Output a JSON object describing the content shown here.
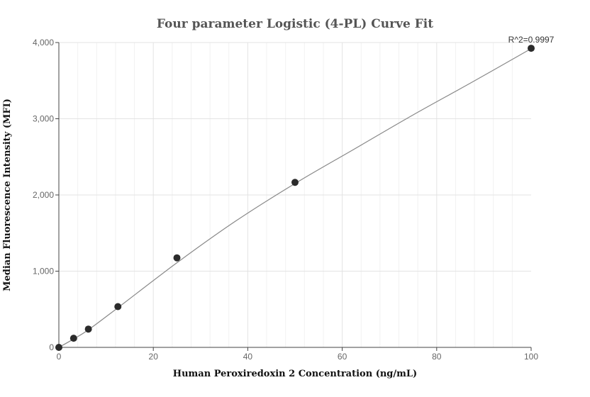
{
  "chart_data": {
    "type": "scatter",
    "title": "Four parameter Logistic (4-PL) Curve Fit",
    "xlabel": "Human Peroxiredoxin 2 Concentration (ng/mL)",
    "ylabel": "Median Fluorescence Intensity (MFI)",
    "xlim": [
      0,
      100
    ],
    "ylim": [
      0,
      4000
    ],
    "x_ticks": [
      0,
      20,
      40,
      60,
      80,
      100
    ],
    "x_tick_labels": [
      "0",
      "20",
      "40",
      "60",
      "80",
      "100"
    ],
    "y_ticks": [
      0,
      1000,
      2000,
      3000,
      4000
    ],
    "y_tick_labels": [
      "0",
      "1,000",
      "2,000",
      "3,000",
      "4,000"
    ],
    "grid": true,
    "points": {
      "x": [
        0,
        3.125,
        6.25,
        12.5,
        25,
        50,
        100
      ],
      "y": [
        0,
        120,
        240,
        535,
        1175,
        2165,
        3925
      ]
    },
    "fit_curve": {
      "x": [
        0,
        3.125,
        6.25,
        12.5,
        25,
        37.5,
        50,
        62.5,
        75,
        87.5,
        100
      ],
      "y": [
        0,
        110,
        230,
        520,
        1110,
        1660,
        2150,
        2600,
        3050,
        3480,
        3920
      ]
    },
    "annotation": "R^2=0.9997",
    "colors": {
      "points": "#2b2b2b",
      "curve": "#888888"
    }
  }
}
